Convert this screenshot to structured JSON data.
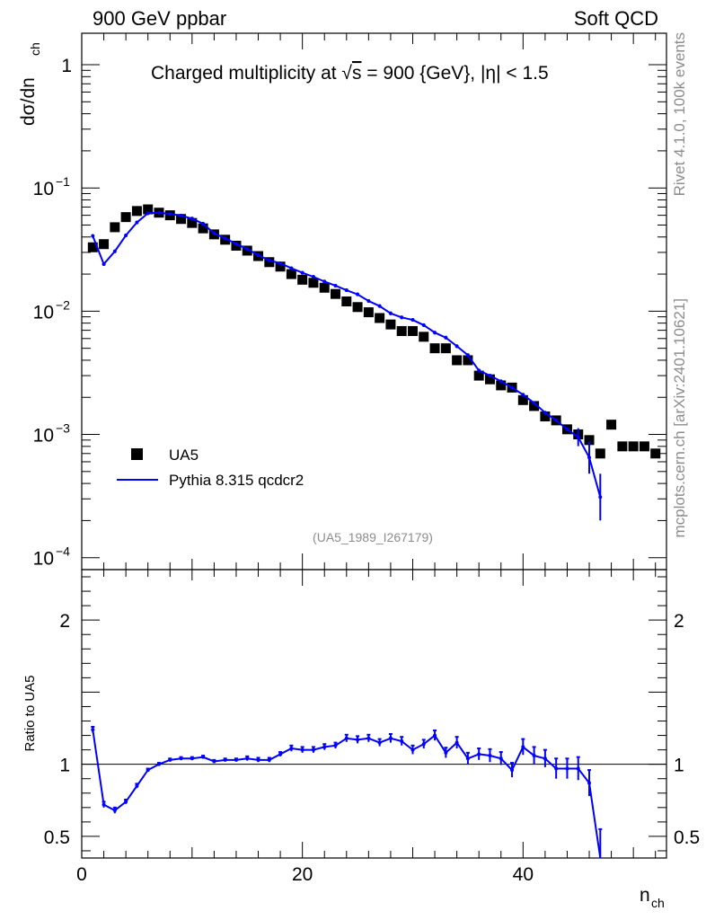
{
  "header": {
    "left": "900 GeV ppbar",
    "right": "Soft QCD"
  },
  "side_labels": {
    "top": "Rivet 4.1.0,  100k events",
    "bottom": "mcplots.cern.ch [arXiv:2401.10621]"
  },
  "analysis_tag": "(UA5_1989_I267179)",
  "colors": {
    "data": "#000000",
    "mc": "#0000ff",
    "side_text": "#8c8c8c"
  },
  "chart_data": [
    {
      "type": "scatter",
      "panel": "main",
      "title_parts": {
        "prefix": "Charged multiplicity at ",
        "sqrt": "√",
        "s_var": "s",
        "suffix": " = 900 {GeV}, |η| < 1.5"
      },
      "ylabel": {
        "main": "dσ/dn",
        "sub": "ch"
      },
      "xlabel": {
        "main": "n",
        "sub": "ch"
      },
      "yscale": "log",
      "ylim": [
        8e-05,
        1.8
      ],
      "xlim": [
        0,
        53
      ],
      "yticks": [
        {
          "value": 1,
          "base": "1",
          "exp": ""
        },
        {
          "value": 0.1,
          "base": "10",
          "exp": "−1"
        },
        {
          "value": 0.01,
          "base": "10",
          "exp": "−2"
        },
        {
          "value": 0.001,
          "base": "10",
          "exp": "−3"
        },
        {
          "value": 0.0001,
          "base": "10",
          "exp": "−4"
        }
      ],
      "legend": {
        "position": "bottom-left",
        "entries": [
          "UA5",
          "Pythia 8.315 qcdcr2"
        ]
      },
      "series": [
        {
          "name": "UA5",
          "style": "marker",
          "x": [
            1,
            2,
            3,
            4,
            5,
            6,
            7,
            8,
            9,
            10,
            11,
            12,
            13,
            14,
            15,
            16,
            17,
            18,
            19,
            20,
            21,
            22,
            23,
            24,
            25,
            26,
            27,
            28,
            29,
            30,
            31,
            32,
            33,
            34,
            35,
            36,
            37,
            38,
            39,
            40,
            41,
            42,
            43,
            44,
            45,
            46,
            47,
            48,
            49,
            50,
            51,
            52
          ],
          "values": [
            0.033,
            0.035,
            0.048,
            0.058,
            0.065,
            0.067,
            0.063,
            0.06,
            0.056,
            0.052,
            0.047,
            0.042,
            0.038,
            0.034,
            0.031,
            0.028,
            0.025,
            0.023,
            0.02,
            0.018,
            0.017,
            0.0155,
            0.0138,
            0.012,
            0.0108,
            0.0098,
            0.0088,
            0.0078,
            0.0069,
            0.0069,
            0.0062,
            0.005,
            0.005,
            0.004,
            0.004,
            0.003,
            0.0028,
            0.0025,
            0.0024,
            0.0019,
            0.0017,
            0.0014,
            0.0013,
            0.0011,
            0.001,
            0.0009,
            0.0007,
            0.0012,
            0.0008,
            0.0008,
            0.0008,
            0.0007
          ]
        },
        {
          "name": "Pythia 8.315 qcdcr2",
          "style": "line",
          "x": [
            1,
            2,
            3,
            4,
            5,
            6,
            7,
            8,
            9,
            10,
            11,
            12,
            13,
            14,
            15,
            16,
            17,
            18,
            19,
            20,
            21,
            22,
            23,
            24,
            25,
            26,
            27,
            28,
            29,
            30,
            31,
            32,
            33,
            34,
            35,
            36,
            37,
            38,
            39,
            40,
            41,
            42,
            43,
            44,
            45,
            46,
            47
          ],
          "values": [
            0.0408,
            0.0241,
            0.0306,
            0.0412,
            0.0525,
            0.0623,
            0.063,
            0.0615,
            0.0596,
            0.0564,
            0.0513,
            0.0428,
            0.0391,
            0.0351,
            0.032,
            0.0285,
            0.0258,
            0.0245,
            0.0223,
            0.0205,
            0.019,
            0.0174,
            0.0161,
            0.0148,
            0.0137,
            0.0121,
            0.011,
            0.0096,
            0.0089,
            0.0085,
            0.0077,
            0.0067,
            0.0061,
            0.0052,
            0.0044,
            0.0033,
            0.003,
            0.0027,
            0.0024,
            0.0021,
            0.0018,
            0.0015,
            0.0013,
            0.0011,
            0.00095,
            0.00065,
            0.00031
          ]
        }
      ]
    },
    {
      "type": "line",
      "panel": "ratio",
      "ylabel": "Ratio to UA5",
      "ylim": [
        0.35,
        2.35
      ],
      "xlim": [
        0,
        53
      ],
      "xticks": [
        0,
        20,
        40
      ],
      "yticks": [
        0.5,
        1,
        2
      ],
      "ytick_labels": [
        "0.5",
        "1",
        "2"
      ],
      "reference_line": 1,
      "series": [
        {
          "name": "Pythia 8.315 qcdcr2 / UA5",
          "x": [
            1,
            2,
            3,
            4,
            5,
            6,
            7,
            8,
            9,
            10,
            11,
            12,
            13,
            14,
            15,
            16,
            17,
            18,
            19,
            20,
            21,
            22,
            23,
            24,
            25,
            26,
            27,
            28,
            29,
            30,
            31,
            32,
            33,
            34,
            35,
            36,
            37,
            38,
            39,
            40,
            41,
            42,
            43,
            44,
            45,
            46,
            47
          ],
          "values": [
            1.24,
            0.72,
            0.68,
            0.74,
            0.85,
            0.96,
            1.0,
            1.03,
            1.04,
            1.04,
            1.05,
            1.02,
            1.03,
            1.03,
            1.04,
            1.03,
            1.03,
            1.07,
            1.11,
            1.1,
            1.1,
            1.12,
            1.13,
            1.18,
            1.17,
            1.18,
            1.15,
            1.18,
            1.16,
            1.1,
            1.14,
            1.2,
            1.08,
            1.15,
            1.04,
            1.07,
            1.06,
            1.04,
            0.96,
            1.12,
            1.06,
            1.04,
            0.97,
            0.97,
            0.97,
            0.87,
            0.35
          ],
          "errors": [
            0.02,
            0.02,
            0.02,
            0.015,
            0.015,
            0.01,
            0.01,
            0.01,
            0.01,
            0.01,
            0.01,
            0.01,
            0.01,
            0.01,
            0.015,
            0.015,
            0.015,
            0.015,
            0.02,
            0.02,
            0.02,
            0.02,
            0.02,
            0.025,
            0.025,
            0.025,
            0.025,
            0.03,
            0.03,
            0.03,
            0.03,
            0.035,
            0.035,
            0.04,
            0.04,
            0.04,
            0.045,
            0.045,
            0.05,
            0.055,
            0.06,
            0.06,
            0.07,
            0.07,
            0.08,
            0.09,
            0.2
          ]
        }
      ]
    }
  ]
}
